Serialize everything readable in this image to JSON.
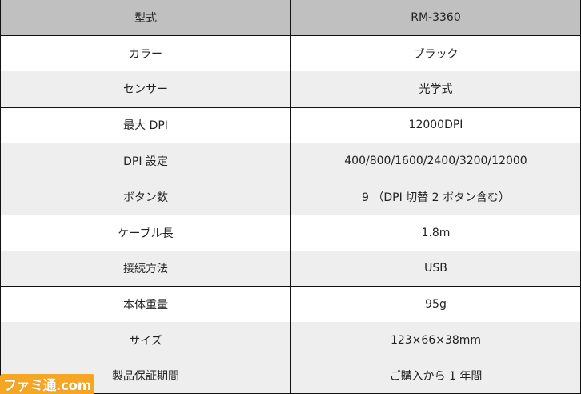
{
  "specs": [
    {
      "label": "型式",
      "value": "RM-3360"
    },
    {
      "label": "カラー",
      "value": "ブラック"
    },
    {
      "label": "センサー",
      "value": "光学式"
    },
    {
      "label": "最大 DPI",
      "value": "12000DPI"
    },
    {
      "label": "DPI 設定",
      "value": "400/800/1600/2400/3200/12000"
    },
    {
      "label": "ボタン数",
      "value": "9 （DPI 切替 2 ボタン含む）"
    },
    {
      "label": "ケーブル長",
      "value": "1.8m"
    },
    {
      "label": "接続方法",
      "value": "USB"
    },
    {
      "label": "本体重量",
      "value": "95g"
    },
    {
      "label": "サイズ",
      "value": "123×66×38mm"
    },
    {
      "label": "製品保証期間",
      "value": "ご購入から 1 年間"
    }
  ],
  "watermark": "ファミ通.com",
  "colors": {
    "header_bg": "#bfc0bf",
    "stripe_bg": "#eeeeee",
    "watermark": "#f5a623"
  }
}
